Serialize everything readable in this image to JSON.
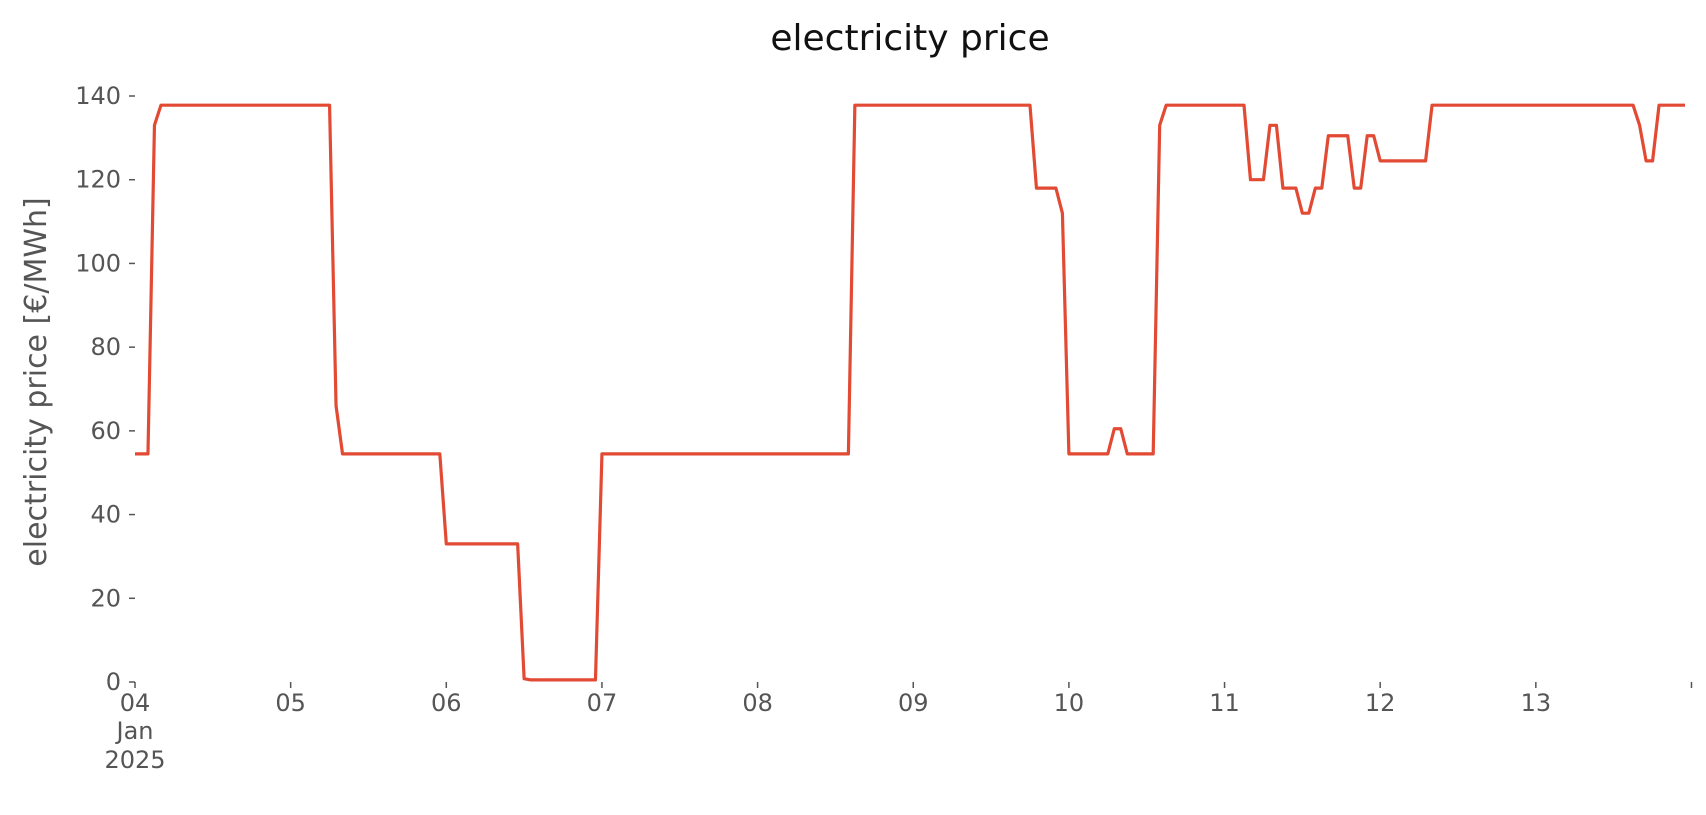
{
  "chart_data": {
    "type": "line",
    "title": "electricity price",
    "xlabel": "",
    "ylabel": "electricity price [€/MWh]",
    "xlim": [
      "2025-01-04 00:00",
      "2025-01-13 23:00"
    ],
    "ylim": [
      0,
      140
    ],
    "grid": false,
    "legend": "none",
    "x_ticks": [
      {
        "value": "2025-01-04 00:00",
        "label": "04",
        "label2": "Jan",
        "label3": "2025"
      },
      {
        "value": "2025-01-05 00:00",
        "label": "05"
      },
      {
        "value": "2025-01-06 00:00",
        "label": "06"
      },
      {
        "value": "2025-01-07 00:00",
        "label": "07"
      },
      {
        "value": "2025-01-08 00:00",
        "label": "08"
      },
      {
        "value": "2025-01-09 00:00",
        "label": "09"
      },
      {
        "value": "2025-01-10 00:00",
        "label": "10"
      },
      {
        "value": "2025-01-11 00:00",
        "label": "11"
      },
      {
        "value": "2025-01-12 00:00",
        "label": "12"
      },
      {
        "value": "2025-01-13 00:00",
        "label": "13"
      },
      {
        "value": "2025-01-14 00:00",
        "label": ""
      }
    ],
    "y_ticks": [
      0,
      20,
      40,
      60,
      80,
      100,
      120,
      140
    ],
    "series": [
      {
        "color": "#e24a33",
        "points": [
          [
            "2025-01-04 00:00",
            54.5
          ],
          [
            "2025-01-04 02:00",
            54.5
          ],
          [
            "2025-01-04 03:00",
            133.0
          ],
          [
            "2025-01-04 04:00",
            137.8
          ],
          [
            "2025-01-05 06:00",
            137.8
          ],
          [
            "2025-01-05 07:00",
            66.0
          ],
          [
            "2025-01-05 08:00",
            54.5
          ],
          [
            "2025-01-05 23:00",
            54.5
          ],
          [
            "2025-01-06 00:00",
            33.0
          ],
          [
            "2025-01-06 11:00",
            33.0
          ],
          [
            "2025-01-06 12:00",
            0.8
          ],
          [
            "2025-01-06 13:00",
            0.5
          ],
          [
            "2025-01-06 23:00",
            0.5
          ],
          [
            "2025-01-07 00:00",
            54.5
          ],
          [
            "2025-01-08 14:00",
            54.5
          ],
          [
            "2025-01-08 15:00",
            137.8
          ],
          [
            "2025-01-09 18:00",
            137.8
          ],
          [
            "2025-01-09 19:00",
            118.0
          ],
          [
            "2025-01-09 22:00",
            118.0
          ],
          [
            "2025-01-09 23:00",
            112.0
          ],
          [
            "2025-01-10 00:00",
            54.5
          ],
          [
            "2025-01-10 06:00",
            54.5
          ],
          [
            "2025-01-10 07:00",
            60.5
          ],
          [
            "2025-01-10 08:00",
            60.5
          ],
          [
            "2025-01-10 09:00",
            54.5
          ],
          [
            "2025-01-10 13:00",
            54.5
          ],
          [
            "2025-01-10 14:00",
            133.0
          ],
          [
            "2025-01-10 15:00",
            137.8
          ],
          [
            "2025-01-11 03:00",
            137.8
          ],
          [
            "2025-01-11 04:00",
            120.0
          ],
          [
            "2025-01-11 06:00",
            120.0
          ],
          [
            "2025-01-11 07:00",
            133.0
          ],
          [
            "2025-01-11 08:00",
            133.0
          ],
          [
            "2025-01-11 09:00",
            118.0
          ],
          [
            "2025-01-11 11:00",
            118.0
          ],
          [
            "2025-01-11 12:00",
            112.0
          ],
          [
            "2025-01-11 13:00",
            112.0
          ],
          [
            "2025-01-11 14:00",
            118.0
          ],
          [
            "2025-01-11 15:00",
            118.0
          ],
          [
            "2025-01-11 16:00",
            130.5
          ],
          [
            "2025-01-11 19:00",
            130.5
          ],
          [
            "2025-01-11 20:00",
            118.0
          ],
          [
            "2025-01-11 21:00",
            118.0
          ],
          [
            "2025-01-11 22:00",
            130.5
          ],
          [
            "2025-01-11 23:00",
            130.5
          ],
          [
            "2025-01-12 00:00",
            124.5
          ],
          [
            "2025-01-12 07:00",
            124.5
          ],
          [
            "2025-01-12 08:00",
            137.8
          ],
          [
            "2025-01-13 15:00",
            137.8
          ],
          [
            "2025-01-13 16:00",
            133.0
          ],
          [
            "2025-01-13 17:00",
            124.5
          ],
          [
            "2025-01-13 18:00",
            124.5
          ],
          [
            "2025-01-13 19:00",
            137.8
          ],
          [
            "2025-01-13 23:00",
            137.8
          ]
        ]
      }
    ]
  }
}
